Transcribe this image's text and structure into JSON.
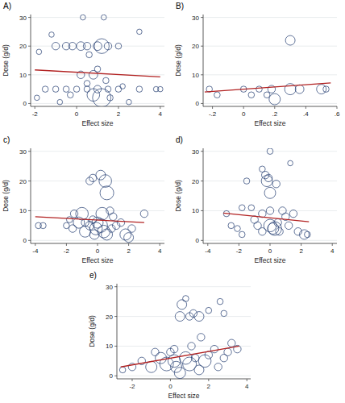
{
  "chart_data": [
    {
      "type": "scatter",
      "title": "A)",
      "x_label": "Effect size",
      "y_label": "Dose (g/d)",
      "xlim": [
        -2.2,
        4.2
      ],
      "ylim": [
        -1,
        31
      ],
      "xticks": [
        -2,
        0,
        2,
        4
      ],
      "yticks": [
        0,
        10,
        20,
        30
      ],
      "grid": true,
      "series": [
        {
          "type": "scatter",
          "color": "#1f3a6e",
          "marker": "circle",
          "x": [
            -1.2,
            -1,
            -0.5,
            -0.2,
            0.2,
            0.5,
            1.0,
            1.2,
            1.5,
            2,
            3,
            0.3,
            1.3,
            0.6,
            0.8,
            0.2,
            -1.8,
            1.0,
            -1.5,
            -1,
            -0.5,
            0,
            0.5,
            1,
            1.5,
            2,
            3,
            3.8,
            4,
            1.2,
            0.8,
            -0.3,
            1.6,
            2.5,
            -0.8,
            0.5,
            1.4,
            2.2,
            -1.9
          ],
          "values": [
            24,
            20,
            20,
            20,
            20,
            20,
            20,
            20,
            20,
            20,
            25,
            30,
            30,
            17,
            10,
            10,
            18,
            12,
            5,
            5,
            5,
            5,
            5,
            5,
            5,
            5,
            5,
            5,
            5,
            2,
            3,
            3,
            2,
            0.5,
            0.5,
            7,
            8,
            6,
            2
          ],
          "size": [
            0.3,
            1,
            1,
            1,
            1.5,
            1,
            1.5,
            6,
            1,
            0.5,
            0.3,
            0.3,
            0.3,
            0.5,
            1.5,
            1,
            0.3,
            0.5,
            0.5,
            0.5,
            0.5,
            0.5,
            0.5,
            1,
            0.5,
            0.5,
            0.5,
            0.3,
            0.3,
            10,
            4,
            0.5,
            0.5,
            0.3,
            0.3,
            0.5,
            0.5,
            0.3,
            0.3
          ]
        },
        {
          "type": "line",
          "color": "#b22222",
          "line_style": "solid",
          "x": [
            -2,
            4
          ],
          "values": [
            11.7,
            9.3
          ]
        }
      ]
    },
    {
      "type": "scatter",
      "title": "B)",
      "x_label": "Effect size",
      "y_label": "Dose (g/d)",
      "xlim": [
        -0.26,
        0.6
      ],
      "ylim": [
        -1,
        31
      ],
      "xticks": [
        {
          "value": -0.2,
          "label": "-.2"
        },
        0,
        {
          "value": 0.2,
          "label": ".2"
        },
        {
          "value": 0.4,
          "label": ".4"
        },
        {
          "value": 0.6,
          "label": ".6"
        }
      ],
      "yticks": [
        0,
        10,
        20,
        30
      ],
      "grid": true,
      "series": [
        {
          "type": "scatter",
          "color": "#1f3a6e",
          "marker": "circle",
          "x": [
            -0.22,
            -0.17,
            0,
            0.05,
            0.1,
            0.18,
            0.2,
            0.3,
            0.3,
            0.36,
            0.5,
            0.53,
            0.15
          ],
          "values": [
            5,
            3,
            5,
            3,
            5,
            5,
            1.5,
            22,
            5,
            5,
            5,
            5,
            3
          ],
          "size": [
            0.5,
            0.5,
            0.5,
            0.5,
            0.5,
            1,
            3,
            2,
            3,
            1.5,
            2,
            0.5,
            0.5
          ]
        },
        {
          "type": "line",
          "color": "#b22222",
          "line_style": "solid",
          "x": [
            -0.25,
            0.56
          ],
          "values": [
            4,
            7.2
          ]
        }
      ]
    },
    {
      "type": "scatter",
      "title": "c)",
      "x_label": "Effect size",
      "y_label": "Dose (g/d)",
      "xlim": [
        -4.3,
        4.3
      ],
      "ylim": [
        -1,
        31
      ],
      "xticks": [
        -4,
        -2,
        0,
        2,
        4
      ],
      "yticks": [
        0,
        10,
        20,
        30
      ],
      "grid": true,
      "series": [
        {
          "type": "scatter",
          "color": "#1f3a6e",
          "marker": "circle",
          "x": [
            -3.8,
            -3.5,
            -1.6,
            -1.5,
            -1,
            -0.8,
            -0.5,
            -0.3,
            -0.1,
            0,
            0.2,
            0.4,
            0.6,
            0.3,
            0.5,
            0.2,
            0.6,
            -0.5,
            -0.3,
            1,
            1.5,
            1.8,
            2,
            2.2,
            3,
            -0.8,
            -1.2,
            0.9,
            1.2,
            -0.2,
            0.8,
            -2,
            -1.8
          ],
          "values": [
            5,
            5,
            4,
            9,
            9,
            6,
            5,
            7,
            4,
            6,
            5,
            3,
            2,
            9,
            20,
            22,
            16,
            20,
            21,
            8,
            6,
            2,
            1,
            4,
            9,
            3,
            6,
            4,
            5,
            2,
            10,
            5,
            7
          ],
          "size": [
            0.5,
            0.5,
            1,
            1,
            4,
            1,
            1.5,
            1,
            4,
            3,
            5,
            4,
            3,
            4,
            4,
            2,
            5,
            1,
            1,
            1,
            1,
            3,
            2,
            1,
            1,
            3,
            3,
            1,
            1,
            2,
            1,
            0.5,
            0.5
          ]
        },
        {
          "type": "line",
          "color": "#b22222",
          "line_style": "solid",
          "x": [
            -4,
            3
          ],
          "values": [
            8,
            6
          ]
        }
      ]
    },
    {
      "type": "scatter",
      "title": "d)",
      "x_label": "Effect size",
      "y_label": "Dose (g/d)",
      "xlim": [
        -4.3,
        4.3
      ],
      "ylim": [
        -1,
        31
      ],
      "xticks": [
        -4,
        -2,
        0,
        2,
        4
      ],
      "yticks": [
        0,
        10,
        20,
        30
      ],
      "grid": true,
      "series": [
        {
          "type": "scatter",
          "color": "#1f3a6e",
          "marker": "circle",
          "x": [
            -2.8,
            -2.5,
            -2.1,
            -1.8,
            -1.5,
            -1,
            -0.8,
            -0.5,
            -0.5,
            -0.3,
            -0.2,
            -0.1,
            0,
            0,
            0,
            0,
            0.2,
            0.3,
            0.5,
            0.8,
            1,
            1.2,
            1.5,
            2.2,
            2.4,
            1.8,
            -1.2,
            -0.5,
            0.6,
            1.3,
            -1.8,
            0.4
          ],
          "values": [
            9,
            5,
            4,
            2,
            20,
            7,
            5,
            3,
            24,
            22,
            20,
            21,
            30,
            10,
            16,
            5,
            4,
            4,
            6,
            10,
            8,
            5,
            9,
            2,
            2,
            3,
            11,
            9,
            3,
            26,
            11,
            19
          ],
          "size": [
            0.5,
            0.5,
            0.5,
            0.5,
            0.5,
            1,
            1,
            1,
            0.5,
            1,
            3,
            1,
            0.5,
            1,
            3,
            4,
            3,
            5,
            1,
            1,
            1,
            1,
            1,
            2,
            0.5,
            1,
            0.5,
            1,
            1,
            0.3,
            0.5,
            1
          ]
        },
        {
          "type": "line",
          "color": "#b22222",
          "line_style": "solid",
          "x": [
            -3,
            2.5
          ],
          "values": [
            9.2,
            6.3
          ]
        }
      ]
    },
    {
      "type": "scatter",
      "title": "e)",
      "x_label": "Effect size",
      "y_label": "Dose (g/d)",
      "xlim": [
        -2.8,
        4.2
      ],
      "ylim": [
        -1,
        31
      ],
      "xticks": [
        -2,
        0,
        2,
        4
      ],
      "yticks": [
        0,
        10,
        20,
        30
      ],
      "grid": true,
      "series": [
        {
          "type": "scatter",
          "color": "#1f3a6e",
          "marker": "circle",
          "x": [
            -2.5,
            -2,
            -1.5,
            -1,
            -0.5,
            -0.2,
            0,
            0.2,
            0.3,
            0.6,
            0.8,
            0.5,
            1,
            1.2,
            1.5,
            0.8,
            1,
            1.3,
            1.5,
            1.8,
            2,
            2.3,
            2.5,
            2.8,
            3,
            3.2,
            3.5,
            2,
            2.6,
            1.1,
            0.2,
            -0.8,
            0.5,
            1.6,
            2.8
          ],
          "values": [
            2,
            3,
            5,
            3,
            6,
            4,
            8,
            5,
            3,
            24,
            26,
            20,
            20,
            21,
            20,
            6,
            4,
            6,
            2,
            5,
            7,
            9,
            3,
            6,
            8,
            11,
            9,
            22,
            25,
            10,
            9,
            8,
            1,
            13,
            21
          ],
          "size": [
            0.5,
            1,
            1,
            3,
            3,
            5,
            1,
            4,
            3,
            2,
            0.5,
            2,
            1,
            1,
            2,
            4,
            5,
            1,
            2,
            4,
            1,
            1,
            1,
            1,
            1,
            1,
            1,
            0.5,
            0.5,
            1,
            1,
            1,
            3,
            1,
            0.5
          ]
        },
        {
          "type": "line",
          "color": "#b22222",
          "line_style": "solid",
          "x": [
            -2.6,
            3.6
          ],
          "values": [
            3,
            10
          ]
        }
      ]
    }
  ]
}
